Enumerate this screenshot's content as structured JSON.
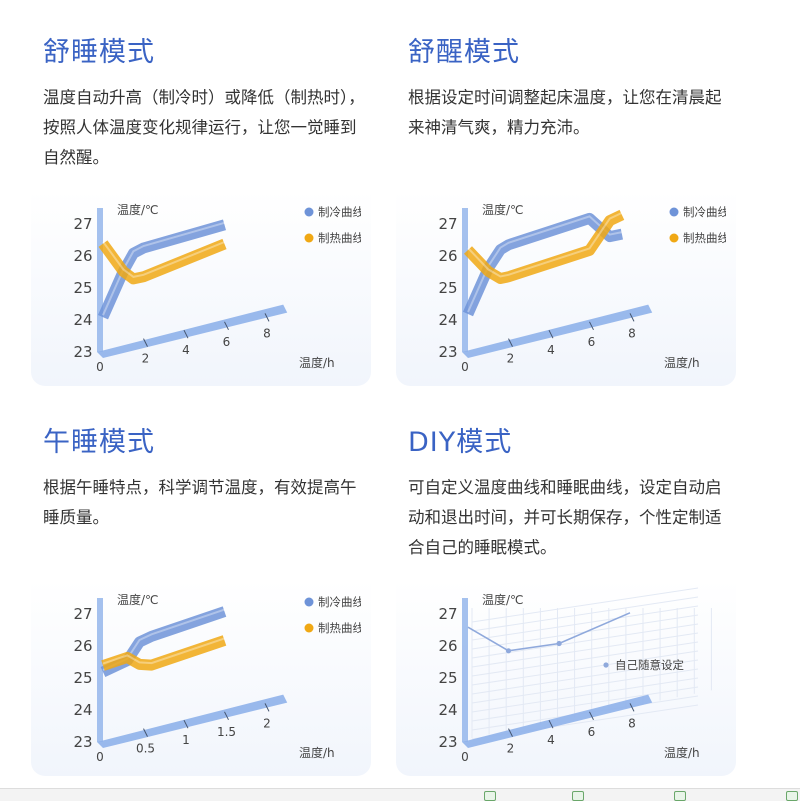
{
  "colors": {
    "title": "#3a63c4",
    "cooling_curve": "#6e93d8",
    "heating_curve": "#f0a814",
    "axis_band": "#8fb1ea"
  },
  "cards": [
    {
      "title": "舒睡模式",
      "desc": "温度自动升高（制冷时）或降低（制热时），按照人体温度变化规律运行，让您一觉睡到自然醒。",
      "chart": {
        "ylabel": "温度/℃",
        "xlabel": "温度/h",
        "legend": [
          "制冷曲线",
          "制热曲线"
        ],
        "yticks": [
          "27",
          "26",
          "25",
          "24",
          "23"
        ],
        "xticks": [
          "0",
          "2",
          "4",
          "6",
          "8"
        ]
      }
    },
    {
      "title": "舒醒模式",
      "desc": "根据设定时间调整起床温度，让您在清晨起来神清气爽，精力充沛。",
      "chart": {
        "ylabel": "温度/℃",
        "xlabel": "温度/h",
        "legend": [
          "制冷曲线",
          "制热曲线"
        ],
        "yticks": [
          "27",
          "26",
          "25",
          "24",
          "23"
        ],
        "xticks": [
          "0",
          "2",
          "4",
          "6",
          "8"
        ]
      }
    },
    {
      "title": "午睡模式",
      "desc": "根据午睡特点，科学调节温度，有效提高午睡质量。",
      "chart": {
        "ylabel": "温度/℃",
        "xlabel": "温度/h",
        "legend": [
          "制冷曲线",
          "制热曲线"
        ],
        "yticks": [
          "27",
          "26",
          "25",
          "24",
          "23"
        ],
        "xticks": [
          "0",
          "0.5",
          "1",
          "1.5",
          "2"
        ]
      }
    },
    {
      "title": "DIY模式",
      "desc": "可自定义温度曲线和睡眠曲线，设定自动启动和退出时间，并可长期保存，个性定制适合自己的睡眠模式。",
      "chart": {
        "ylabel": "温度/℃",
        "xlabel": "温度/h",
        "legend": [
          "自己随意设定"
        ],
        "yticks": [
          "27",
          "26",
          "25",
          "24",
          "23"
        ],
        "xticks": [
          "0",
          "2",
          "4",
          "6",
          "8"
        ]
      }
    }
  ],
  "chart_data": [
    {
      "type": "line",
      "title": "舒睡模式",
      "xlabel": "温度/h",
      "ylabel": "温度/℃",
      "xlim": [
        0,
        8
      ],
      "ylim": [
        23,
        27
      ],
      "series": [
        {
          "name": "制冷曲线",
          "x": [
            0,
            1,
            1.5,
            2,
            6
          ],
          "y": [
            23.9,
            25.2,
            25.7,
            25.8,
            26.0
          ]
        },
        {
          "name": "制热曲线",
          "x": [
            0,
            1,
            1.5,
            2,
            6
          ],
          "y": [
            26.2,
            25.2,
            24.9,
            24.9,
            25.4
          ]
        }
      ]
    },
    {
      "type": "line",
      "title": "舒醒模式",
      "xlabel": "温度/h",
      "ylabel": "温度/℃",
      "xlim": [
        0,
        8
      ],
      "ylim": [
        23,
        27
      ],
      "series": [
        {
          "name": "制冷曲线",
          "x": [
            0,
            1,
            1.6,
            2,
            6,
            7,
            7.6
          ],
          "y": [
            24.0,
            25.3,
            25.8,
            25.9,
            26.2,
            25.5,
            25.5
          ]
        },
        {
          "name": "制热曲线",
          "x": [
            0,
            1,
            1.6,
            2,
            6,
            7,
            7.6
          ],
          "y": [
            26.0,
            25.2,
            24.9,
            24.9,
            25.2,
            26.0,
            26.1
          ]
        }
      ]
    },
    {
      "type": "line",
      "title": "午睡模式",
      "xlabel": "温度/h",
      "ylabel": "温度/℃",
      "xlim": [
        0,
        2
      ],
      "ylim": [
        23,
        27
      ],
      "series": [
        {
          "name": "制冷曲线",
          "x": [
            0,
            0.3,
            0.45,
            0.6,
            1.5
          ],
          "y": [
            25.0,
            25.2,
            25.7,
            25.8,
            26.1
          ]
        },
        {
          "name": "制热曲线",
          "x": [
            0,
            0.3,
            0.45,
            0.6,
            1.5
          ],
          "y": [
            25.2,
            25.3,
            25.0,
            24.9,
            25.2
          ]
        }
      ]
    },
    {
      "type": "line",
      "title": "DIY模式",
      "xlabel": "温度/h",
      "ylabel": "温度/℃",
      "xlim": [
        0,
        8
      ],
      "ylim": [
        23,
        27
      ],
      "series": [
        {
          "name": "自己随意设定",
          "x": [
            0,
            2,
            4.5,
            8
          ],
          "y": [
            26.4,
            25.4,
            25.3,
            25.8
          ]
        }
      ]
    }
  ]
}
